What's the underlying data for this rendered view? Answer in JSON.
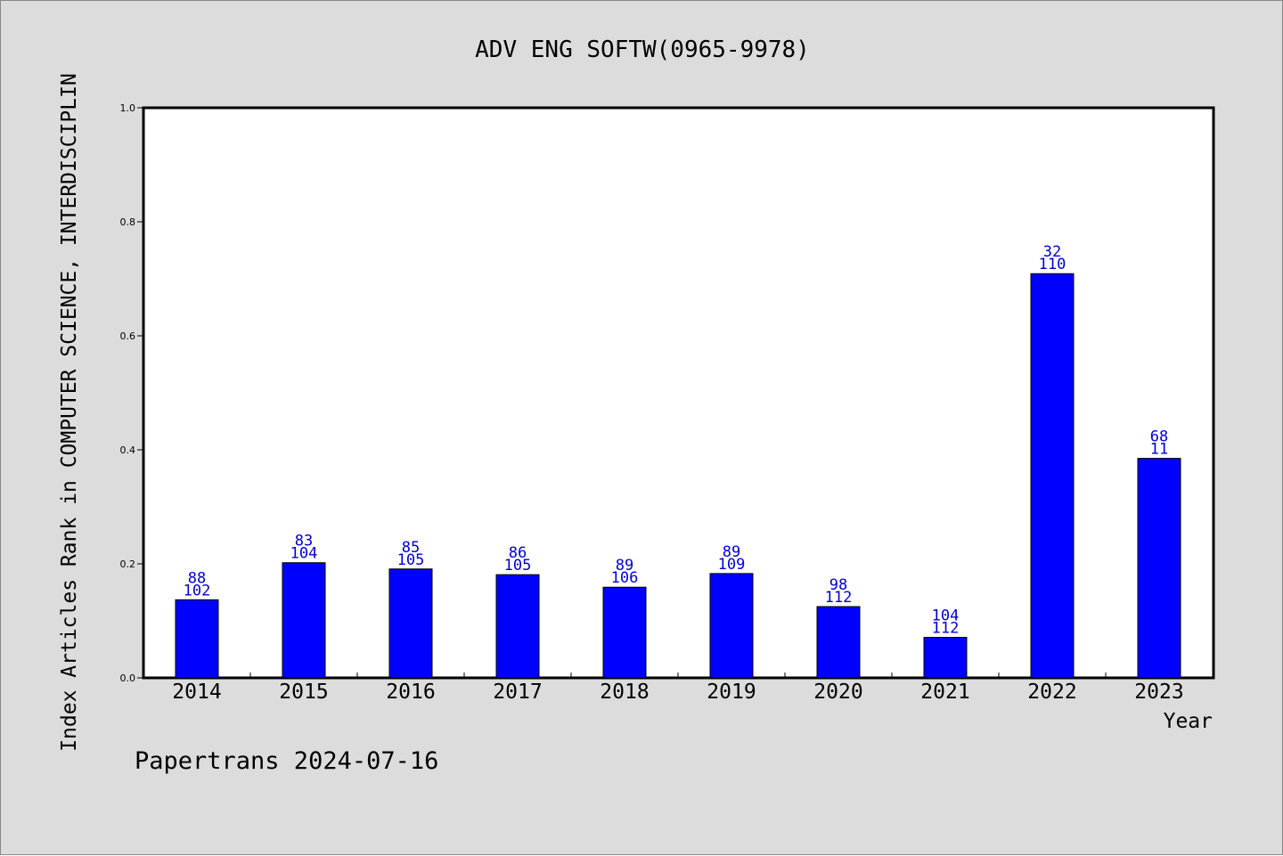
{
  "colors": {
    "background": "#dcdcdc",
    "plot_background": "#ffffff",
    "bar": "#0000ff",
    "bar_label": "#0000cc",
    "axis": "#000000"
  },
  "footer": {
    "credit": "Papertrans 2024-07-16"
  },
  "chart_data": {
    "type": "bar",
    "title": "ADV ENG SOFTW(0965-9978)",
    "xlabel": "Year",
    "ylabel": "Index Articles Rank in COMPUTER SCIENCE, INTERDISCIPLIN",
    "categories": [
      "2014",
      "2015",
      "2016",
      "2017",
      "2018",
      "2019",
      "2020",
      "2021",
      "2022",
      "2023"
    ],
    "values": [
      0.137,
      0.202,
      0.191,
      0.181,
      0.159,
      0.183,
      0.125,
      0.071,
      0.709,
      0.385
    ],
    "label_top": [
      "88",
      "83",
      "85",
      "86",
      "89",
      "89",
      "98",
      "104",
      "32",
      "68"
    ],
    "label_bottom": [
      "102",
      "104",
      "105",
      "105",
      "106",
      "109",
      "112",
      "112",
      "110",
      "11"
    ],
    "ylim": [
      0,
      1.0
    ],
    "yticks": [
      "0.0",
      "0.2",
      "0.4",
      "0.6",
      "0.8",
      "1.0"
    ],
    "grid": false,
    "legend": "none"
  }
}
